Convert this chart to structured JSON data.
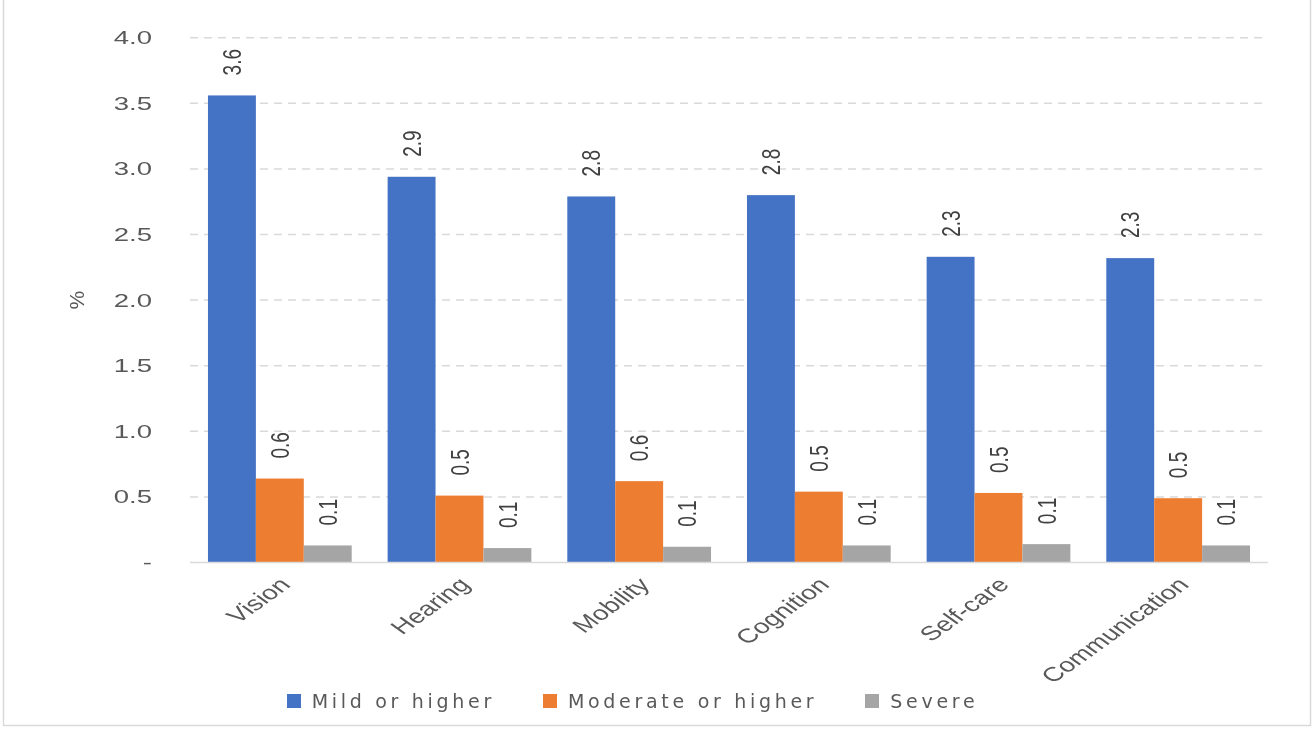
{
  "chart_data": {
    "type": "bar",
    "ylabel": "%",
    "categories": [
      "Vision",
      "Hearing",
      "Mobility",
      "Cognition",
      "Self-care",
      "Communication"
    ],
    "series": [
      {
        "name": "Mild or higher",
        "color": "#4472c4",
        "values": [
          3.56,
          2.94,
          2.79,
          2.8,
          2.33,
          2.32
        ],
        "value_labels": [
          "3.6",
          "2.9",
          "2.8",
          "2.8",
          "2.3",
          "2.3"
        ]
      },
      {
        "name": "Moderate or higher",
        "color": "#ed7d31",
        "values": [
          0.64,
          0.51,
          0.62,
          0.54,
          0.53,
          0.49
        ],
        "value_labels": [
          "0.6",
          "0.5",
          "0.6",
          "0.5",
          "0.5",
          "0.5"
        ]
      },
      {
        "name": "Severe",
        "color": "#a5a5a5",
        "values": [
          0.13,
          0.11,
          0.12,
          0.13,
          0.14,
          0.13
        ],
        "value_labels": [
          "0.1",
          "0.1",
          "0.1",
          "0.1",
          "0.1",
          "0.1"
        ]
      }
    ],
    "ylim": [
      0,
      4
    ],
    "yticks": [
      {
        "value": 0,
        "label": "-"
      },
      0.5,
      {
        "value": 1,
        "label": "1.0"
      },
      1.5,
      {
        "value": 2,
        "label": "2.0"
      },
      2.5,
      {
        "value": 3,
        "label": "3.0"
      },
      3.5,
      {
        "value": 4,
        "label": "4.0"
      }
    ],
    "grid": "y",
    "legend": "bottom"
  }
}
